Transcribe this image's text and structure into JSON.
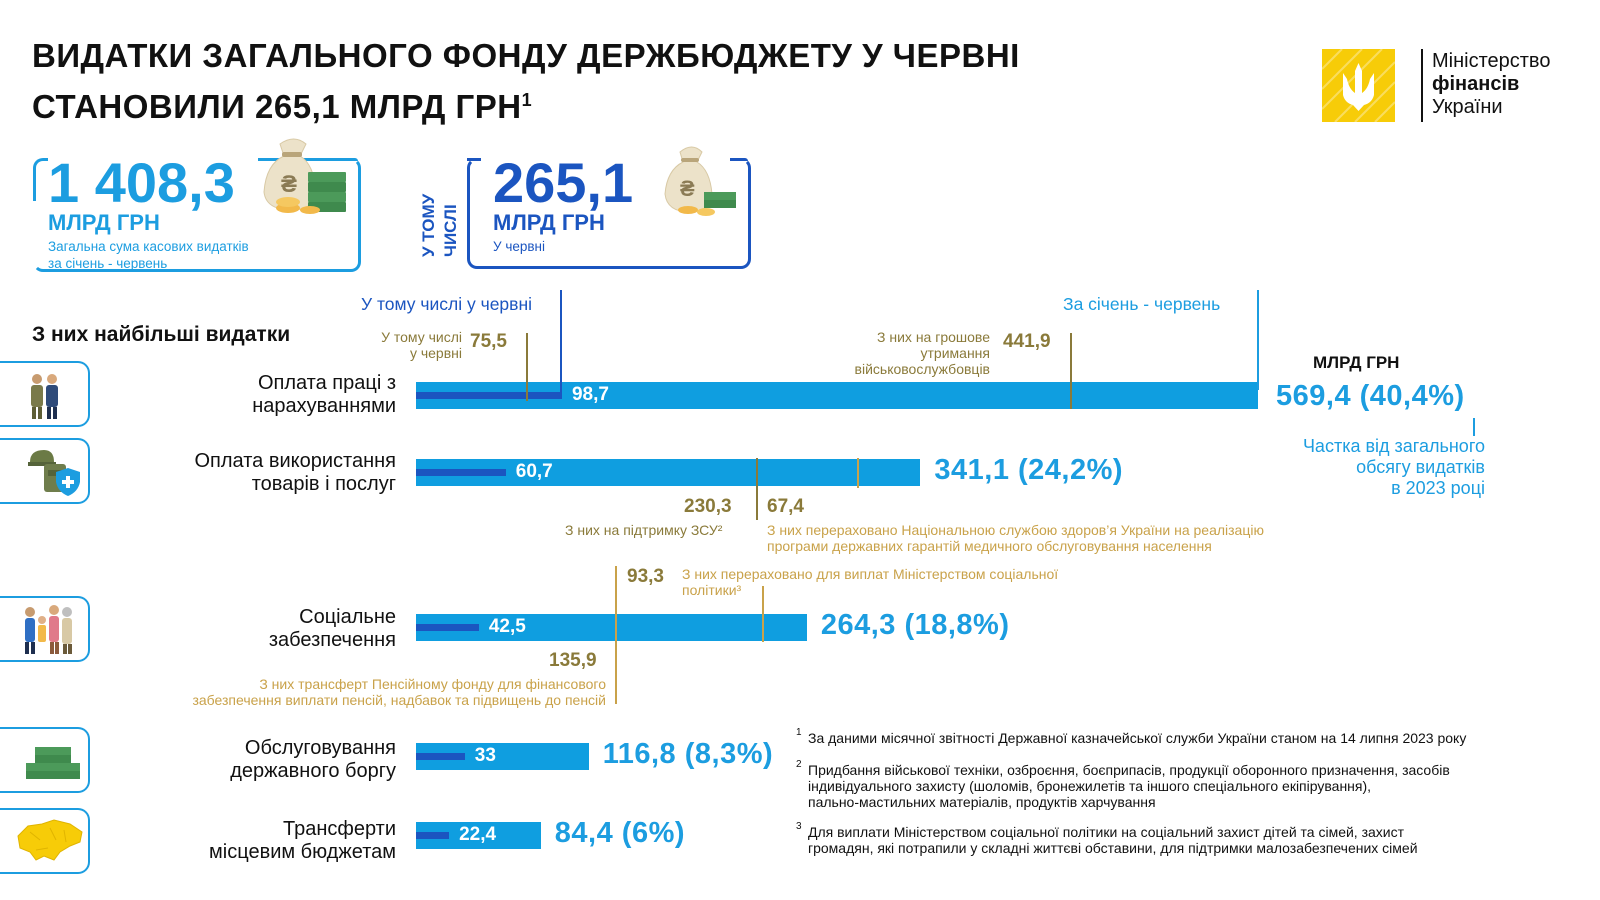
{
  "title": {
    "line1": "ВИДАТКИ ЗАГАЛЬНОГО ФОНДУ ДЕРЖБЮДЖЕТУ У ЧЕРВНІ",
    "line2": "СТАНОВИЛИ 265,1 МЛРД ГРН",
    "sup": "1"
  },
  "logo": {
    "line1": "Міністерство",
    "line2": "фінансів",
    "line3": "України"
  },
  "cards": {
    "total": {
      "value": "1 408,3",
      "unit": "МЛРД ГРН",
      "caption1": "Загальна сума касових видатків",
      "caption2": "за січень - червень"
    },
    "vertical_label": [
      "У ТОМУ",
      "ЧИСЛІ"
    ],
    "june": {
      "value": "265,1",
      "unit": "МЛРД ГРН",
      "caption1": "У червні"
    }
  },
  "section_title": "З них найбільші видатки",
  "headers": {
    "june": "У тому числі у червні",
    "ytd": "За січень - червень",
    "unit": "МЛРД ГРН"
  },
  "share_note": [
    "Частка від загального",
    "обсягу видатків",
    "в 2023 році"
  ],
  "colors": {
    "bar": "#0f9ee0",
    "june_bar": "#1b55c0",
    "olive": "#8a7a3a",
    "gold": "#c9a24a",
    "accent": "#1c9de0",
    "logo": "#f7cc08"
  },
  "chart_data": {
    "type": "bar",
    "orientation": "horizontal",
    "unit": "МЛРД ГРН",
    "categories": [
      "Оплата праці з нарахуваннями",
      "Оплата використання товарів і послуг",
      "Соціальне забезпечення",
      "Обслуговування державного боргу",
      "Трансферти місцевим бюджетам"
    ],
    "series": [
      {
        "name": "За січень - червень",
        "values": [
          569.4,
          341.1,
          264.3,
          116.8,
          84.4
        ]
      },
      {
        "name": "У тому числі у червні",
        "values": [
          98.7,
          60.7,
          42.5,
          33,
          22.4
        ]
      }
    ],
    "labels": {
      "ytd": [
        "569,4 (40,4%)",
        "341,1 (24,2%)",
        "264,3 (18,8%)",
        "116,8 (8,3%)",
        "84,4 (6%)"
      ],
      "june": [
        "98,7",
        "60,7",
        "42,5",
        "33",
        "22,4"
      ]
    },
    "category_lines": [
      [
        "Оплата праці з",
        "нарахуваннями"
      ],
      [
        "Оплата використання",
        "товарів і послуг"
      ],
      [
        "Соціальне",
        "забезпечення"
      ],
      [
        "Обслуговування",
        "державного боргу"
      ],
      [
        "Трансферти",
        "місцевим бюджетам"
      ]
    ],
    "icons": [
      "people-military-icon",
      "helmet-vest-shield-icon",
      "family-icon",
      "money-stacks-icon",
      "ukraine-map-icon"
    ],
    "annotations": {
      "wages_june_military": {
        "value": 75.5,
        "label": "75,5",
        "text": [
          "У тому числі",
          "у червні"
        ]
      },
      "wages_military": {
        "value": 441.9,
        "label": "441,9",
        "text": [
          "З них на грошове",
          "утримання",
          "військовослужбовців"
        ]
      },
      "goods_zsu": {
        "value": 230.3,
        "label": "230,3",
        "text": "З них на підтримку ЗСУ²"
      },
      "goods_nszu": {
        "value": 67.4,
        "label": "67,4",
        "text": [
          "З них перераховано Національною службою здоров’я України на реалізацію",
          "програми державних гарантій медичного обслуговування населення"
        ]
      },
      "social_ministry": {
        "value": 93.3,
        "label": "93,3",
        "text": [
          "З них перераховано для виплат Міністерством соціальної",
          "політики³"
        ]
      },
      "social_pension": {
        "value": 135.9,
        "label": "135,9",
        "text": [
          "З них трансферт Пенсійному фонду для фінансового",
          "забезпечення виплати пенсій, надбавок та підвищень до пенсій"
        ]
      }
    }
  },
  "footnotes": [
    {
      "num": "1",
      "lines": [
        "За даними місячної звітності Державної казначейської служби України станом на 14 липня 2023 року"
      ]
    },
    {
      "num": "2",
      "lines": [
        "Придбання військової техніки, озброєння, боєприпасів, продукції оборонного призначення, засобів",
        "індивідуального захисту (шоломів, бронежилетів та іншого спеціального екіпірування),",
        "пально-мастильних матеріалів, продуктів харчування"
      ]
    },
    {
      "num": "3",
      "lines": [
        "Для виплати Міністерством соціальної політики на соціальний захист дітей та сімей, захист",
        "громадян, які потрапили у складні життєві обставини, для підтримки малозабезпечених сімей"
      ]
    }
  ]
}
